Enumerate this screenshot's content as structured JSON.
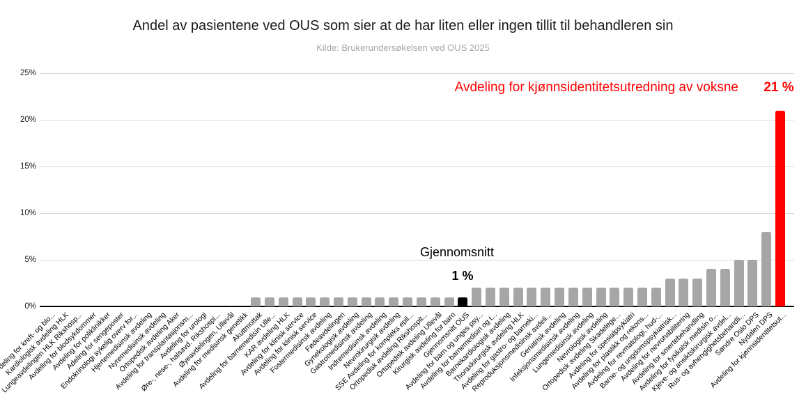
{
  "chart_data": {
    "type": "bar",
    "title": "Andel av pasientene ved OUS som sier at de har liten eller ingen tillit til behandleren sin",
    "subtitle": "Kilde: Brukerundersøkelsen ved OUS 2025",
    "ylim": [
      0,
      25
    ],
    "y_ticks": [
      0,
      5,
      10,
      15,
      20,
      25
    ],
    "y_tick_labels": [
      "0%",
      "5%",
      "10%",
      "15%",
      "20%",
      "25%"
    ],
    "grid": true,
    "legend": "none",
    "categories": [
      "Avdeling for kreft- og blo...",
      "Kardiologisk avdeling HLK",
      "Lungeavdelingen HLK Rikshosp...",
      "Avdeling for blodsykdommer",
      "Avdeling for poliklinikker",
      "Adeling for sengeposter",
      "Endokrinologi sykelig overv for...",
      "Hjertemedisinsk avdeling",
      "Nyremedisinsk avdeling",
      "Ortopedisk avdeling Aker",
      "Avdeling for transplantasjonsm...",
      "Avdeling for urologi",
      "Øre-, nese-, halsavd. Rikshospi...",
      "Øyeavdelingen, Ullevål",
      "Avdeling for medisinsk genetikk",
      "Akuttmottak",
      "Avdeling for barnemedisin Ulle...",
      "KAR avdeling HLK",
      "Avdeling for klinisk service",
      "Avdeling for klinisk service",
      "Fostermedisinsk avdeling",
      "Fødeavdelingen",
      "Gynekologisk avdeling",
      "Gastromedisinsk avdeling",
      "Indremedisinsk avdeling",
      "Nevrokirurgisk avdeling",
      "SSE Avdeling for kompleks epil...",
      "Ortopedisk avdeling Rikshospit...",
      "Ortopedisk avdeling Ullevål",
      "Kirurgisk avdeling for barn",
      "Gjennomsnitt OUS",
      "Avdeling for barn og unges psy...",
      "Avdeling for barnemedisin og t...",
      "Barnekardiologisk avdeling",
      "Thoraxkirurgisk avdeling HLK",
      "Avdeling for gastro- og barneki...",
      "Reproduksjonsmedisinsk avdeli...",
      "Geriatrisk avdeling",
      "Infeksjonsmedisinsk avdeling",
      "Lungemedisinsk avdeling",
      "Nevrologisk avdeling",
      "Ortopedisk avdeling Skadelege...",
      "Avdeling for spesialpsykiatri",
      "Avdeling for plastikk og rekons...",
      "Avdeling for revmatologi, hud-...",
      "Barne- og ungdomspsykiatrisk...",
      "Avdeling for nevrohabilitering",
      "Avdeling for smertebehandling",
      "Avdeling for fysikalsk medisin o...",
      "Kjeve- og ansiktskirurgisk avdel...",
      "Rus- og avhengighetsbehandli...",
      "Søndre Oslo DPS",
      "Nydalen DPS",
      "Avdeling for kjønnsidentitetsut..."
    ],
    "values": [
      0,
      0,
      0,
      0,
      0,
      0,
      0,
      0,
      0,
      0,
      0,
      0,
      0,
      0,
      0,
      1,
      1,
      1,
      1,
      1,
      1,
      1,
      1,
      1,
      1,
      1,
      1,
      1,
      1,
      1,
      1,
      2,
      2,
      2,
      2,
      2,
      2,
      2,
      2,
      2,
      2,
      2,
      2,
      2,
      2,
      3,
      3,
      3,
      4,
      4,
      5,
      5,
      8,
      21
    ],
    "default_bar_color": "#a6a6a6",
    "special_bars": [
      {
        "index": 30,
        "color": "#000000"
      },
      {
        "index": 53,
        "color": "#ff0000"
      }
    ],
    "annotations": {
      "average": {
        "label": "Gjennomsnitt",
        "value": "1 %"
      },
      "highlight": {
        "label": "Avdeling for kjønnsidentitetsutredning av voksne",
        "value": "21 %",
        "color": "#ff0000"
      }
    }
  }
}
